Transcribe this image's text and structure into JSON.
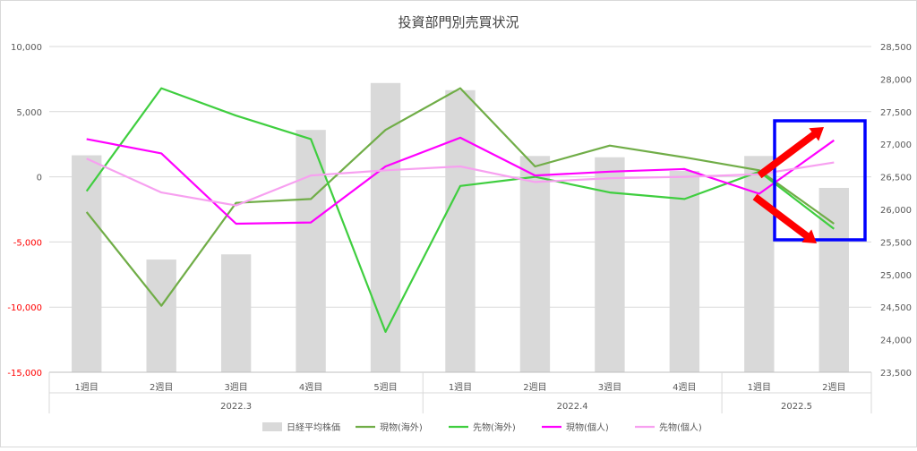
{
  "chart_data": {
    "type": "bar+line",
    "title": "投資部門別売買状況",
    "categories": [
      "1週目",
      "2週目",
      "3週目",
      "4週目",
      "5週目",
      "1週目",
      "2週目",
      "3週目",
      "4週目",
      "1週目",
      "2週目"
    ],
    "groups": [
      {
        "label": "2022.3",
        "count": 5
      },
      {
        "label": "2022.4",
        "count": 4
      },
      {
        "label": "2022.5",
        "count": 2
      }
    ],
    "y_left": {
      "ticks": [
        10000,
        5000,
        0,
        -5000,
        -10000,
        -15000
      ],
      "tick_labels": [
        "10,000",
        "5,000",
        "0",
        "-5,000",
        "-10,000",
        "-15,000"
      ],
      "ylim": [
        -15000,
        10000
      ],
      "negative_color": "#ff0000"
    },
    "y_right": {
      "ticks": [
        23500,
        24000,
        24500,
        25000,
        25500,
        26000,
        26500,
        27000,
        27500,
        28000,
        28500
      ],
      "tick_labels": [
        "23,500",
        "24,000",
        "24,500",
        "25,000",
        "25,500",
        "26,000",
        "26,500",
        "27,000",
        "27,500",
        "28,000",
        "28,500"
      ],
      "ylim": [
        23500,
        28500
      ]
    },
    "series": [
      {
        "name": "日経平均株価",
        "kind": "bar",
        "axis": "right",
        "color": "#d9d9d9",
        "values": [
          26830,
          25230,
          25310,
          27220,
          27940,
          27830,
          26820,
          26800,
          26590,
          26820,
          26330
        ]
      },
      {
        "name": "現物(海外)",
        "kind": "line",
        "axis": "left",
        "color": "#70ad47",
        "values": [
          -2700,
          -9900,
          -2000,
          -1700,
          3600,
          6800,
          800,
          2400,
          1500,
          500,
          -3600
        ]
      },
      {
        "name": "先物(海外)",
        "kind": "line",
        "axis": "left",
        "color": "#3fce3f",
        "values": [
          -1100,
          6800,
          4700,
          2900,
          -11900,
          -700,
          0,
          -1200,
          -1700,
          400,
          -4000
        ]
      },
      {
        "name": "現物(個人)",
        "kind": "line",
        "axis": "left",
        "color": "#ff00ff",
        "values": [
          2900,
          1800,
          -3600,
          -3500,
          800,
          3000,
          100,
          400,
          600,
          -1300,
          2800
        ]
      },
      {
        "name": "先物(個人)",
        "kind": "line",
        "axis": "left",
        "color": "#f7a0f0",
        "values": [
          1400,
          -1200,
          -2200,
          100,
          500,
          800,
          -400,
          -100,
          0,
          200,
          1100
        ]
      }
    ],
    "legend_position": "bottom",
    "grid": true,
    "annotation": {
      "type": "highlight-box",
      "color": "#0000ff",
      "arrow_color": "#ff0000",
      "arrows": [
        "up-right",
        "down-right"
      ]
    }
  }
}
